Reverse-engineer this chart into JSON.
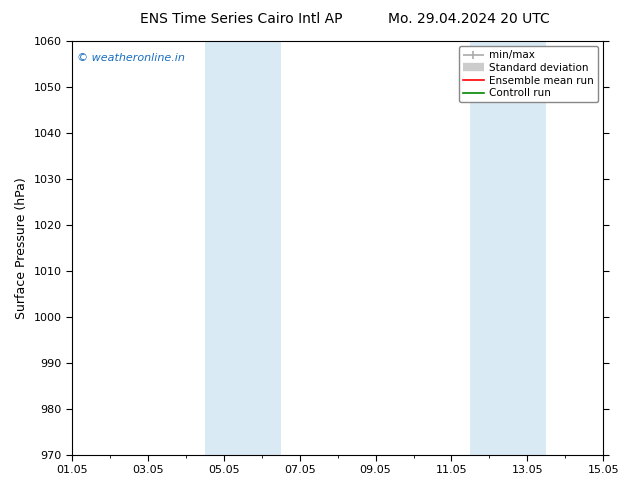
{
  "title_left": "ENS Time Series Cairo Intl AP",
  "title_right": "Mo. 29.04.2024 20 UTC",
  "ylabel": "Surface Pressure (hPa)",
  "ylim": [
    970,
    1060
  ],
  "yticks": [
    970,
    980,
    990,
    1000,
    1010,
    1020,
    1030,
    1040,
    1050,
    1060
  ],
  "xlim": [
    0,
    14
  ],
  "xtick_labels": [
    "01.05",
    "03.05",
    "05.05",
    "07.05",
    "09.05",
    "11.05",
    "13.05",
    "15.05"
  ],
  "xtick_positions": [
    0,
    2,
    4,
    6,
    8,
    10,
    12,
    14
  ],
  "shaded_bands": [
    {
      "xstart": 3.5,
      "xend": 4.5,
      "color": "#daeaf5"
    },
    {
      "xstart": 4.5,
      "xend": 5.5,
      "color": "#daeaf5"
    },
    {
      "xstart": 10.5,
      "xend": 11.5,
      "color": "#daeaf5"
    },
    {
      "xstart": 11.5,
      "xend": 12.5,
      "color": "#daeaf5"
    }
  ],
  "watermark": "© weatheronline.in",
  "watermark_color": "#1a6ec0",
  "legend_items": [
    {
      "label": "min/max",
      "color": "#b8b8b8",
      "type": "line"
    },
    {
      "label": "Standard deviation",
      "color": "#c8c8c8",
      "type": "band"
    },
    {
      "label": "Ensemble mean run",
      "color": "#ff0000",
      "type": "line"
    },
    {
      "label": "Controll run",
      "color": "#008800",
      "type": "line"
    }
  ],
  "background_color": "#ffffff",
  "plot_bg_color": "#ffffff",
  "border_color": "#000000",
  "title_fontsize": 10,
  "tick_fontsize": 8,
  "ylabel_fontsize": 9,
  "watermark_fontsize": 8
}
